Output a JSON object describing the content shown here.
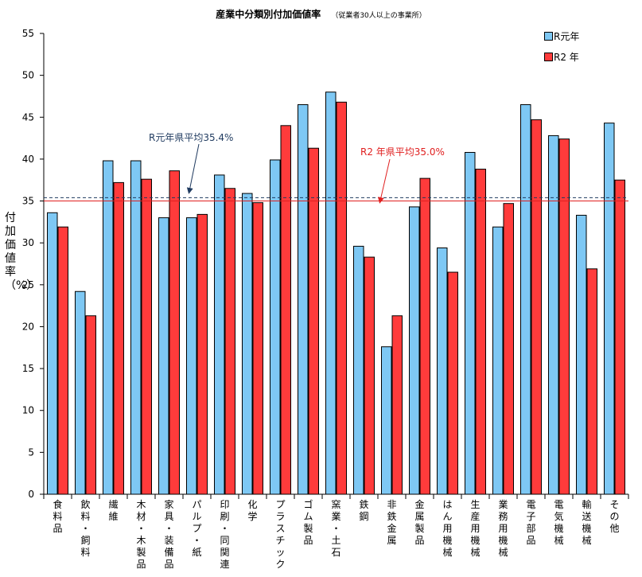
{
  "chart_data": {
    "type": "bar",
    "title": "産業中分類別付加価値率",
    "subtitle": "（従業者30人以上の事業所）",
    "ylabel": "付加価値率（%）",
    "xlabel": "",
    "ylim": [
      0,
      55
    ],
    "yticks": [
      0,
      5,
      10,
      15,
      20,
      25,
      30,
      35,
      40,
      45,
      50,
      55
    ],
    "categories": [
      "食料品",
      "飲料・飼料",
      "繊維",
      "木材・木製品",
      "家具・装備品",
      "パルプ・紙",
      "印刷・同関連",
      "化学",
      "プラスチック",
      "ゴム製品",
      "窯業・土石",
      "鉄鋼",
      "非鉄金属",
      "金属製品",
      "はん用機械",
      "生産用機械",
      "業務用機械",
      "電子部品",
      "電気機械",
      "輸送機械",
      "その他"
    ],
    "series": [
      {
        "name": "R元年",
        "color": "#7ec8f4",
        "values": [
          33.6,
          24.2,
          39.8,
          39.8,
          33.0,
          33.0,
          38.1,
          35.9,
          39.9,
          46.5,
          48.0,
          29.6,
          17.6,
          34.3,
          29.4,
          40.8,
          31.9,
          46.5,
          42.8,
          33.3,
          44.3
        ]
      },
      {
        "name": "R2年",
        "color": "#ff3b3b",
        "values": [
          31.9,
          21.3,
          37.2,
          37.6,
          38.6,
          33.4,
          36.5,
          34.8,
          44.0,
          41.3,
          46.8,
          28.3,
          21.3,
          37.7,
          26.5,
          38.8,
          34.7,
          44.7,
          42.4,
          26.9,
          37.5
        ]
      }
    ],
    "reference_lines": [
      {
        "name": "R元年県平均",
        "value": 35.4,
        "label": "R元年県平均35.4%",
        "color": "#1f3a5f",
        "style": "dashed"
      },
      {
        "name": "R2年県平均",
        "value": 35.0,
        "label": "R2 年県平均35.0%",
        "color": "#e02020",
        "style": "solid"
      }
    ],
    "legend": {
      "position": "top-right",
      "labels": [
        "R元年",
        "R2 年"
      ]
    },
    "grid": false
  }
}
